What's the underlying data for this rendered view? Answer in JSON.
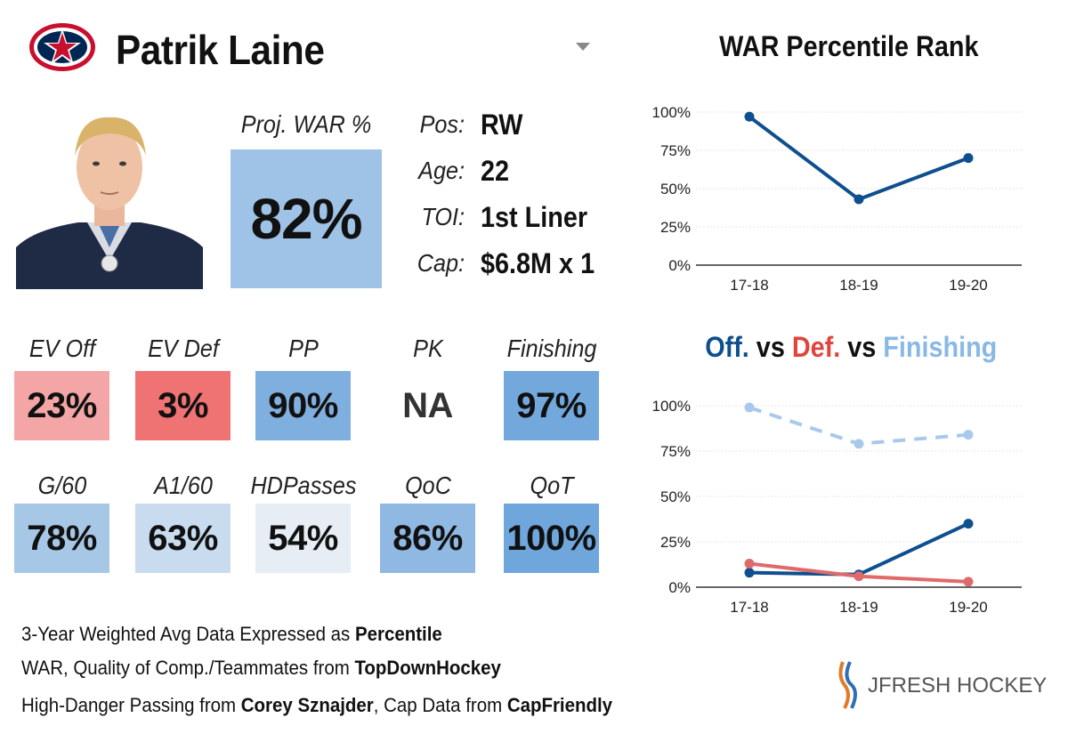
{
  "header": {
    "player_name": "Patrik Laine"
  },
  "proj_war": {
    "label": "Proj. WAR %",
    "value": "82%",
    "color": "#9fc3e6"
  },
  "info": [
    {
      "label": "Pos:",
      "value": "RW"
    },
    {
      "label": "Age:",
      "value": "22"
    },
    {
      "label": "TOI:",
      "value": "1st Liner"
    },
    {
      "label": "Cap:",
      "value": "$6.8M x 1"
    }
  ],
  "stats_row1": [
    {
      "label": "EV Off",
      "value": "23%",
      "color": "#f4a6a6"
    },
    {
      "label": "EV Def",
      "value": "3%",
      "color": "#f07373"
    },
    {
      "label": "PP",
      "value": "90%",
      "color": "#7fafdf"
    },
    {
      "label": "PK",
      "value": "NA",
      "color": "#ffffff"
    },
    {
      "label": "Finishing",
      "value": "97%",
      "color": "#73a8dc"
    }
  ],
  "stats_row2": [
    {
      "label": "G/60",
      "value": "78%",
      "color": "#a7c7e7"
    },
    {
      "label": "A1/60",
      "value": "63%",
      "color": "#c9dcef"
    },
    {
      "label": "HDPasses",
      "value": "54%",
      "color": "#e6edf5"
    },
    {
      "label": "QoC",
      "value": "86%",
      "color": "#8fb8e2"
    },
    {
      "label": "QoT",
      "value": "100%",
      "color": "#6fa6db"
    }
  ],
  "footer": {
    "line1_pre": "3-Year Weighted Avg Data Expressed as ",
    "line1_bold": "Percentile",
    "line2_pre": "WAR, Quality of Comp./Teammates from ",
    "line2_bold": "TopDownHockey",
    "line3_pre": "High-Danger Passing from ",
    "line3_bold1": "Corey Sznajder",
    "line3_mid": ", Cap Data from ",
    "line3_bold2": "CapFriendly"
  },
  "brand": {
    "name": "JFRESH HOCKEY"
  },
  "chart_data": [
    {
      "type": "line",
      "title": "WAR Percentile Rank",
      "categories": [
        "17-18",
        "18-19",
        "19-20"
      ],
      "yticks": [
        "0%",
        "25%",
        "50%",
        "75%",
        "100%"
      ],
      "ylim": [
        0,
        100
      ],
      "grid": true,
      "series": [
        {
          "values": [
            97,
            43,
            70
          ],
          "color": "#0e4f8f",
          "dashed": false
        }
      ]
    },
    {
      "type": "line",
      "title_parts": [
        {
          "text": "Off.",
          "color": "#0e4f8f"
        },
        {
          "text": " vs ",
          "color": "#111111"
        },
        {
          "text": "Def.",
          "color": "#e0453c"
        },
        {
          "text": " vs ",
          "color": "#111111"
        },
        {
          "text": "Finishing",
          "color": "#8ab8e6"
        }
      ],
      "categories": [
        "17-18",
        "18-19",
        "19-20"
      ],
      "yticks": [
        "0%",
        "25%",
        "50%",
        "75%",
        "100%"
      ],
      "ylim": [
        0,
        100
      ],
      "grid": true,
      "series": [
        {
          "values": [
            99,
            79,
            84
          ],
          "color": "#a9c9ec",
          "dashed": true
        },
        {
          "values": [
            8,
            7,
            35
          ],
          "color": "#0e4f8f",
          "dashed": false
        },
        {
          "values": [
            13,
            6,
            3
          ],
          "color": "#e06a6a",
          "dashed": false
        }
      ]
    }
  ]
}
